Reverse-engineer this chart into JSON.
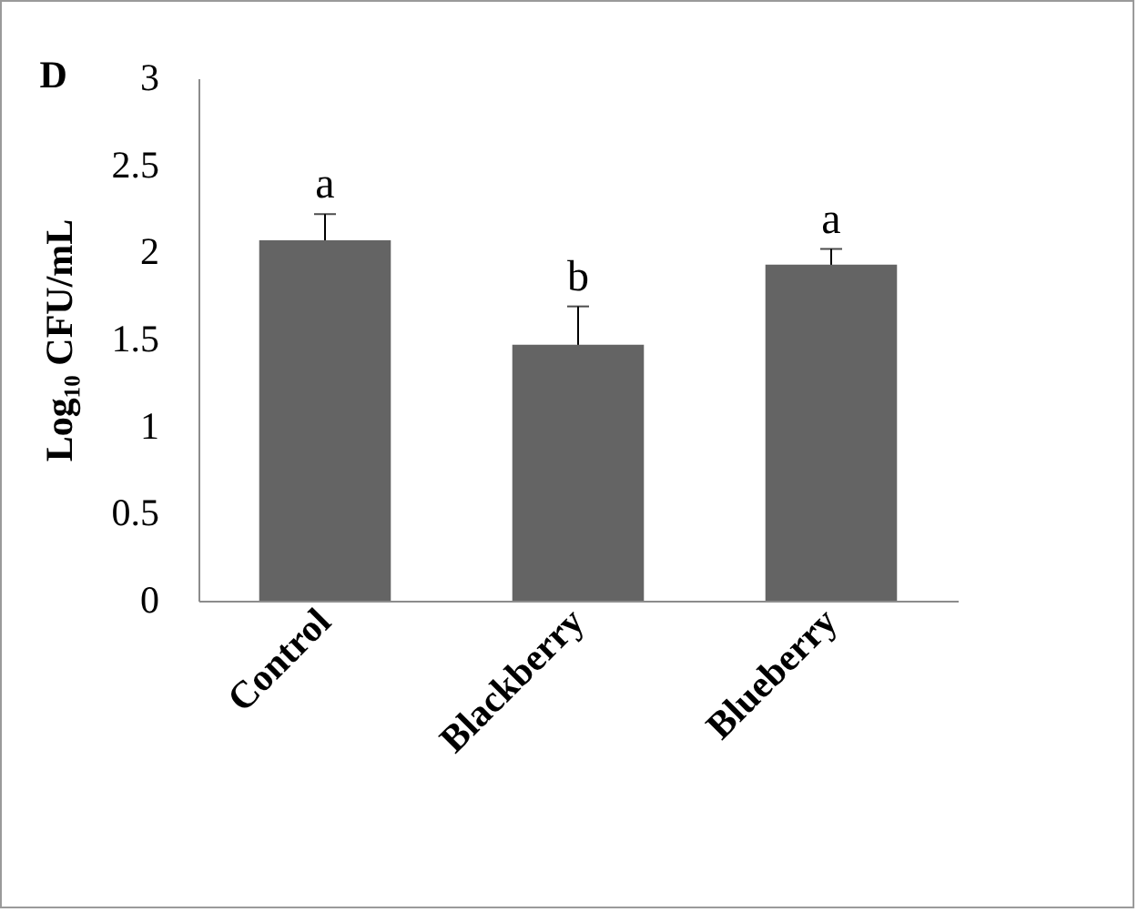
{
  "chart_data": {
    "type": "bar",
    "title": "D",
    "ylabel": "Log₁₀ CFU/mL",
    "categories": [
      "Control",
      "Blackberry",
      "Blueberry"
    ],
    "values": [
      2.07,
      1.47,
      1.93
    ],
    "errors": [
      0.15,
      0.22,
      0.09
    ],
    "color": "#646464",
    "ylim": [
      0,
      3
    ],
    "yticks": [
      0,
      0.5,
      1,
      1.5,
      2,
      2.5,
      3
    ],
    "grid": false,
    "annotations": [
      "a",
      "b",
      "a"
    ]
  }
}
